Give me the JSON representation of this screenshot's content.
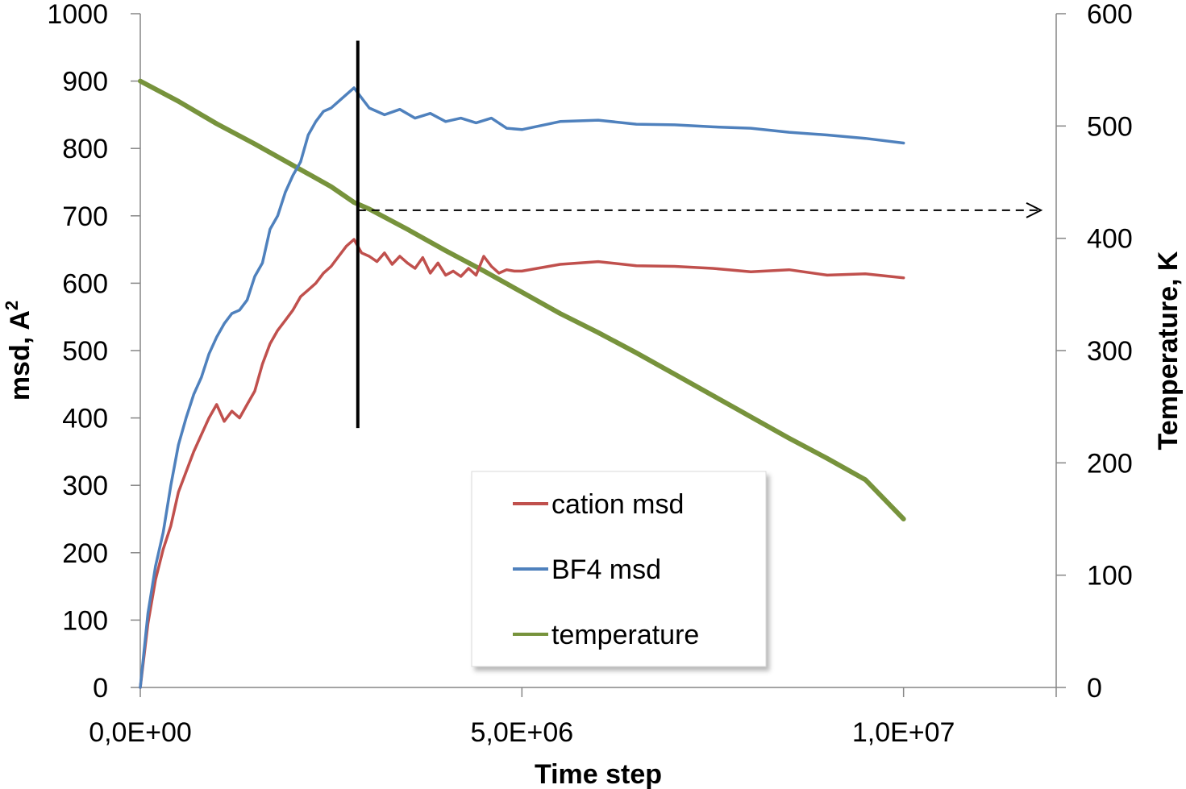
{
  "chart_data": {
    "type": "line",
    "xlabel": "Time step",
    "ylabel": "msd, A",
    "ylabel_superscript": "2",
    "y2label": "Temperature, K",
    "xlim": [
      0,
      12000000
    ],
    "ylim": [
      0,
      1000
    ],
    "y2lim": [
      0,
      600
    ],
    "x_ticks": [
      0,
      5000000,
      10000000
    ],
    "x_tick_labels": [
      "0,0E+00",
      "5,0E+06",
      "1,0E+07"
    ],
    "y_ticks": [
      0,
      100,
      200,
      300,
      400,
      500,
      600,
      700,
      800,
      900,
      1000
    ],
    "y_tick_labels": [
      "0",
      "100",
      "200",
      "300",
      "400",
      "500",
      "600",
      "700",
      "800",
      "900",
      "1000"
    ],
    "y2_ticks": [
      0,
      100,
      200,
      300,
      400,
      500,
      600
    ],
    "y2_tick_labels": [
      "0",
      "100",
      "200",
      "300",
      "400",
      "500",
      "600"
    ],
    "grid": false,
    "legend_position": "bottom-center",
    "series": [
      {
        "name": "cation msd",
        "axis": "left",
        "color": "#c0504d",
        "x": [
          0,
          100000,
          200000,
          300000,
          400000,
          500000,
          600000,
          700000,
          800000,
          900000,
          1000000,
          1100000,
          1200000,
          1300000,
          1400000,
          1500000,
          1600000,
          1700000,
          1800000,
          1900000,
          2000000,
          2100000,
          2200000,
          2300000,
          2400000,
          2500000,
          2600000,
          2700000,
          2800000,
          2900000,
          3000000,
          3100000,
          3200000,
          3300000,
          3400000,
          3500000,
          3600000,
          3700000,
          3800000,
          3900000,
          4000000,
          4100000,
          4200000,
          4300000,
          4400000,
          4500000,
          4600000,
          4700000,
          4800000,
          4900000,
          5000000,
          5500000,
          6000000,
          6500000,
          7000000,
          7500000,
          8000000,
          8500000,
          9000000,
          9500000,
          10000000
        ],
        "values": [
          0,
          95,
          160,
          205,
          240,
          290,
          320,
          350,
          375,
          400,
          420,
          395,
          410,
          400,
          420,
          440,
          480,
          510,
          530,
          545,
          560,
          580,
          590,
          600,
          615,
          625,
          640,
          655,
          665,
          645,
          640,
          632,
          645,
          628,
          640,
          630,
          622,
          638,
          615,
          630,
          612,
          618,
          610,
          622,
          612,
          640,
          625,
          615,
          620,
          618,
          618,
          628,
          632,
          626,
          625,
          622,
          617,
          620,
          612,
          614,
          608
        ]
      },
      {
        "name": "BF4 msd",
        "axis": "left",
        "color": "#4f81bd",
        "x": [
          0,
          100000,
          200000,
          300000,
          400000,
          500000,
          600000,
          700000,
          800000,
          900000,
          1000000,
          1100000,
          1200000,
          1300000,
          1400000,
          1500000,
          1600000,
          1700000,
          1800000,
          1900000,
          2000000,
          2100000,
          2200000,
          2300000,
          2400000,
          2500000,
          2600000,
          2700000,
          2800000,
          2900000,
          3000000,
          3200000,
          3400000,
          3600000,
          3800000,
          4000000,
          4200000,
          4400000,
          4600000,
          4800000,
          5000000,
          5500000,
          6000000,
          6500000,
          7000000,
          7500000,
          8000000,
          8500000,
          9000000,
          9500000,
          10000000
        ],
        "values": [
          0,
          110,
          180,
          230,
          300,
          360,
          400,
          435,
          460,
          495,
          520,
          540,
          555,
          560,
          575,
          610,
          630,
          680,
          700,
          735,
          760,
          780,
          820,
          840,
          855,
          860,
          870,
          880,
          890,
          875,
          860,
          850,
          858,
          845,
          852,
          840,
          845,
          838,
          845,
          830,
          828,
          840,
          842,
          836,
          835,
          832,
          830,
          824,
          820,
          815,
          808
        ]
      },
      {
        "name": "temperature",
        "axis": "right",
        "color": "#77933c",
        "x": [
          0,
          500000,
          1000000,
          1500000,
          2000000,
          2500000,
          2800000,
          3000000,
          3500000,
          4000000,
          4500000,
          5000000,
          5500000,
          6000000,
          6500000,
          7000000,
          7500000,
          8000000,
          8500000,
          9000000,
          9500000,
          10000000
        ],
        "values": [
          540,
          522,
          502,
          484,
          465,
          446,
          432,
          426,
          408,
          389,
          371,
          352,
          333,
          316,
          298,
          279,
          260,
          241,
          222,
          204,
          185,
          150
        ]
      }
    ],
    "annotations": [
      {
        "type": "vertical-line",
        "x": 2850000,
        "y_from": 385,
        "y_to": 960,
        "color": "#000000"
      },
      {
        "type": "dashed-arrow",
        "x_from": 2850000,
        "x_to": 11800000,
        "y2": 425,
        "color": "#000000"
      }
    ]
  }
}
